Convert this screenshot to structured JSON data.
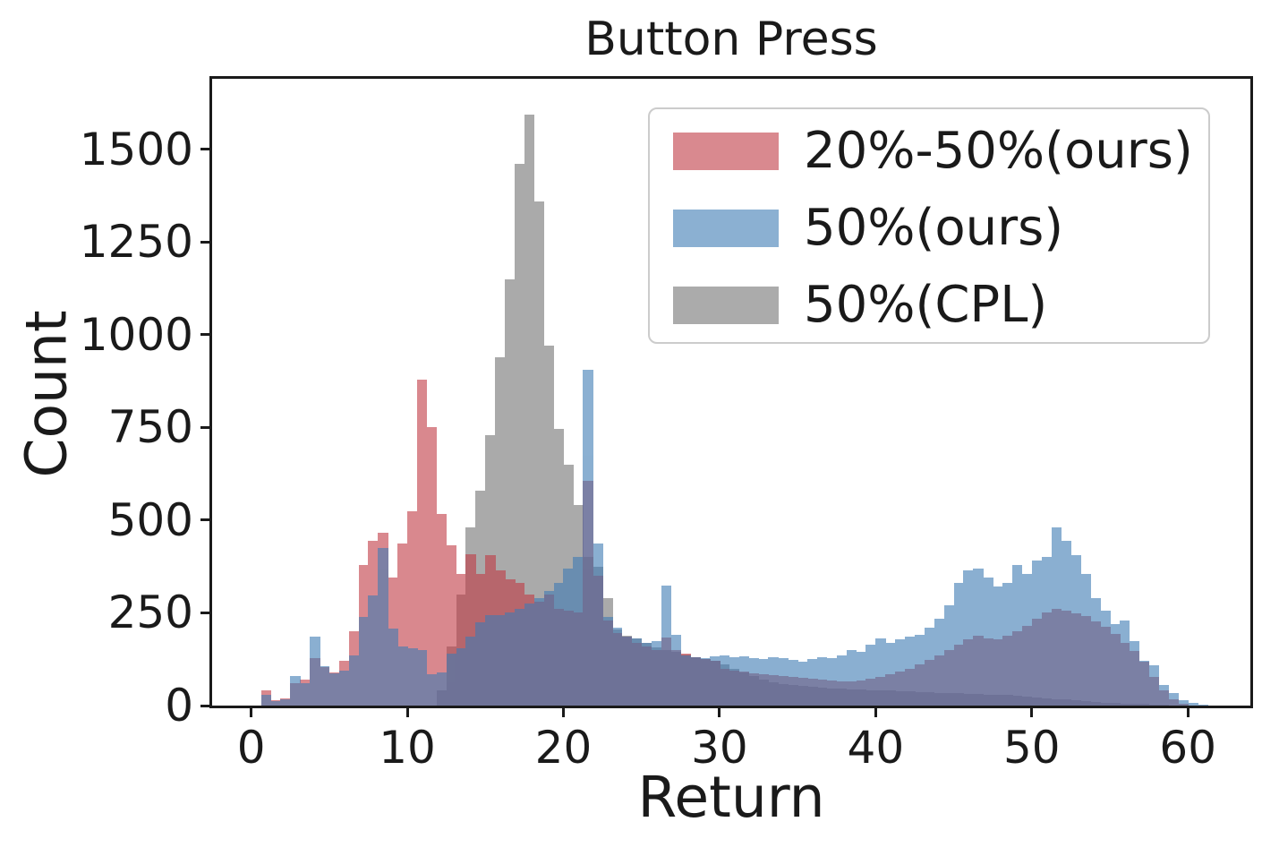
{
  "figure": {
    "title": "Button Press",
    "xlabel": "Return",
    "ylabel": "Count"
  },
  "chart_data": {
    "type": "bar",
    "variant": "overlapping-translucent-histograms",
    "title": "Button Press",
    "xlabel": "Return",
    "ylabel": "Count",
    "bin_start": 0,
    "bin_width": 0.625,
    "xlim": [
      -2.5,
      64
    ],
    "ylim": [
      0,
      1690
    ],
    "grid": false,
    "alpha": 0.6,
    "x_ticks": [
      "0",
      "10",
      "20",
      "30",
      "40",
      "50",
      "60"
    ],
    "x_tick_values": [
      0,
      10,
      20,
      30,
      40,
      50,
      60
    ],
    "y_ticks": [
      "0",
      "250",
      "500",
      "750",
      "1000",
      "1250",
      "1500"
    ],
    "y_tick_values": [
      0,
      250,
      500,
      750,
      1000,
      1250,
      1500
    ],
    "legend_position": "upper right",
    "series": [
      {
        "name": "20%-50%(ours)",
        "color": "#c03a44",
        "displayed_over_white": "#d9898f",
        "z": 2,
        "values": [
          0,
          40,
          15,
          20,
          60,
          70,
          128,
          105,
          90,
          120,
          200,
          380,
          444,
          465,
          345,
          437,
          525,
          880,
          750,
          517,
          432,
          356,
          408,
          355,
          405,
          365,
          340,
          330,
          300,
          280,
          300,
          260,
          255,
          250,
          605,
          350,
          230,
          195,
          185,
          170,
          160,
          150,
          183,
          150,
          140,
          130,
          125,
          120,
          100,
          95,
          92,
          88,
          85,
          82,
          80,
          78,
          75,
          73,
          70,
          68,
          66,
          65,
          68,
          72,
          78,
          85,
          92,
          100,
          110,
          122,
          135,
          150,
          165,
          178,
          188,
          182,
          178,
          188,
          200,
          215,
          235,
          252,
          260,
          256,
          248,
          242,
          228,
          212,
          192,
          168,
          148,
          118,
          78,
          42,
          18,
          6,
          0,
          0,
          0,
          0
        ]
      },
      {
        "name": "50%(ours)",
        "color": "#3e7bb4",
        "displayed_over_white": "#8bb0d2",
        "z": 3,
        "values": [
          0,
          30,
          12,
          17,
          80,
          60,
          186,
          107,
          87,
          95,
          135,
          239,
          296,
          424,
          207,
          160,
          155,
          150,
          85,
          90,
          140,
          155,
          185,
          225,
          245,
          245,
          250,
          260,
          275,
          290,
          310,
          330,
          370,
          400,
          905,
          437,
          240,
          210,
          185,
          180,
          170,
          175,
          323,
          190,
          135,
          130,
          128,
          132,
          135,
          130,
          132,
          128,
          125,
          130,
          128,
          122,
          118,
          125,
          130,
          128,
          135,
          150,
          145,
          165,
          180,
          170,
          178,
          185,
          190,
          210,
          235,
          270,
          330,
          365,
          370,
          345,
          320,
          330,
          380,
          355,
          390,
          400,
          480,
          445,
          405,
          355,
          290,
          255,
          220,
          230,
          175,
          120,
          108,
          55,
          35,
          15,
          8,
          3,
          0,
          0
        ]
      },
      {
        "name": "50%(CPL)",
        "color": "#737373",
        "displayed_over_white": "#ababab",
        "z": 1,
        "values": [
          0,
          0,
          0,
          0,
          0,
          0,
          0,
          0,
          0,
          0,
          0,
          0,
          0,
          0,
          0,
          0,
          0,
          0,
          0,
          40,
          160,
          300,
          480,
          580,
          730,
          940,
          1150,
          1460,
          1594,
          1360,
          970,
          745,
          650,
          540,
          400,
          375,
          290,
          205,
          188,
          180,
          169,
          158,
          150,
          145,
          138,
          130,
          125,
          120,
          112,
          100,
          90,
          80,
          70,
          62,
          58,
          55,
          52,
          50,
          48,
          46,
          45,
          44,
          43,
          42,
          41,
          40,
          39,
          38,
          37,
          36,
          35,
          34,
          33,
          32,
          31,
          30,
          29,
          28,
          26,
          24,
          22,
          20,
          18,
          16,
          14,
          12,
          10,
          8,
          7,
          6,
          5,
          4,
          3,
          2,
          1,
          0,
          0,
          0,
          0,
          0
        ]
      }
    ]
  }
}
